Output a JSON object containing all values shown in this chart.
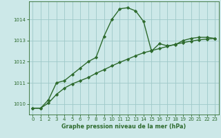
{
  "line1_x": [
    0,
    1,
    2,
    3,
    4,
    5,
    6,
    7,
    8,
    9,
    10,
    11,
    12,
    13,
    14,
    15,
    16,
    17,
    18,
    19,
    20,
    21,
    22,
    23
  ],
  "line1_y": [
    1009.8,
    1009.8,
    1010.2,
    1011.0,
    1011.1,
    1011.4,
    1011.7,
    1012.0,
    1012.2,
    1013.2,
    1014.0,
    1014.5,
    1014.55,
    1014.4,
    1013.9,
    1012.5,
    1012.85,
    1012.75,
    1012.8,
    1013.0,
    1013.1,
    1013.15,
    1013.15,
    1013.1
  ],
  "line2_x": [
    0,
    1,
    2,
    3,
    4,
    5,
    6,
    7,
    8,
    9,
    10,
    11,
    12,
    13,
    14,
    15,
    16,
    17,
    18,
    19,
    20,
    21,
    22,
    23
  ],
  "line2_y": [
    1009.8,
    1009.8,
    1010.05,
    1010.45,
    1010.75,
    1010.95,
    1011.1,
    1011.25,
    1011.45,
    1011.62,
    1011.8,
    1011.97,
    1012.12,
    1012.28,
    1012.42,
    1012.52,
    1012.62,
    1012.72,
    1012.82,
    1012.9,
    1012.97,
    1013.03,
    1013.07,
    1013.1
  ],
  "line_color": "#2d6a2d",
  "bg_color": "#cce8e8",
  "grid_color": "#9ec8c8",
  "xlabel": "Graphe pression niveau de la mer (hPa)",
  "yticks": [
    1010,
    1011,
    1012,
    1013,
    1014
  ],
  "xticks": [
    0,
    1,
    2,
    3,
    4,
    5,
    6,
    7,
    8,
    9,
    10,
    11,
    12,
    13,
    14,
    15,
    16,
    17,
    18,
    19,
    20,
    21,
    22,
    23
  ],
  "xlim": [
    -0.5,
    23.5
  ],
  "ylim": [
    1009.5,
    1014.85
  ],
  "marker": "D",
  "markersize": 2.2,
  "linewidth": 1.0,
  "tick_fontsize": 5.0,
  "xlabel_fontsize": 5.8
}
